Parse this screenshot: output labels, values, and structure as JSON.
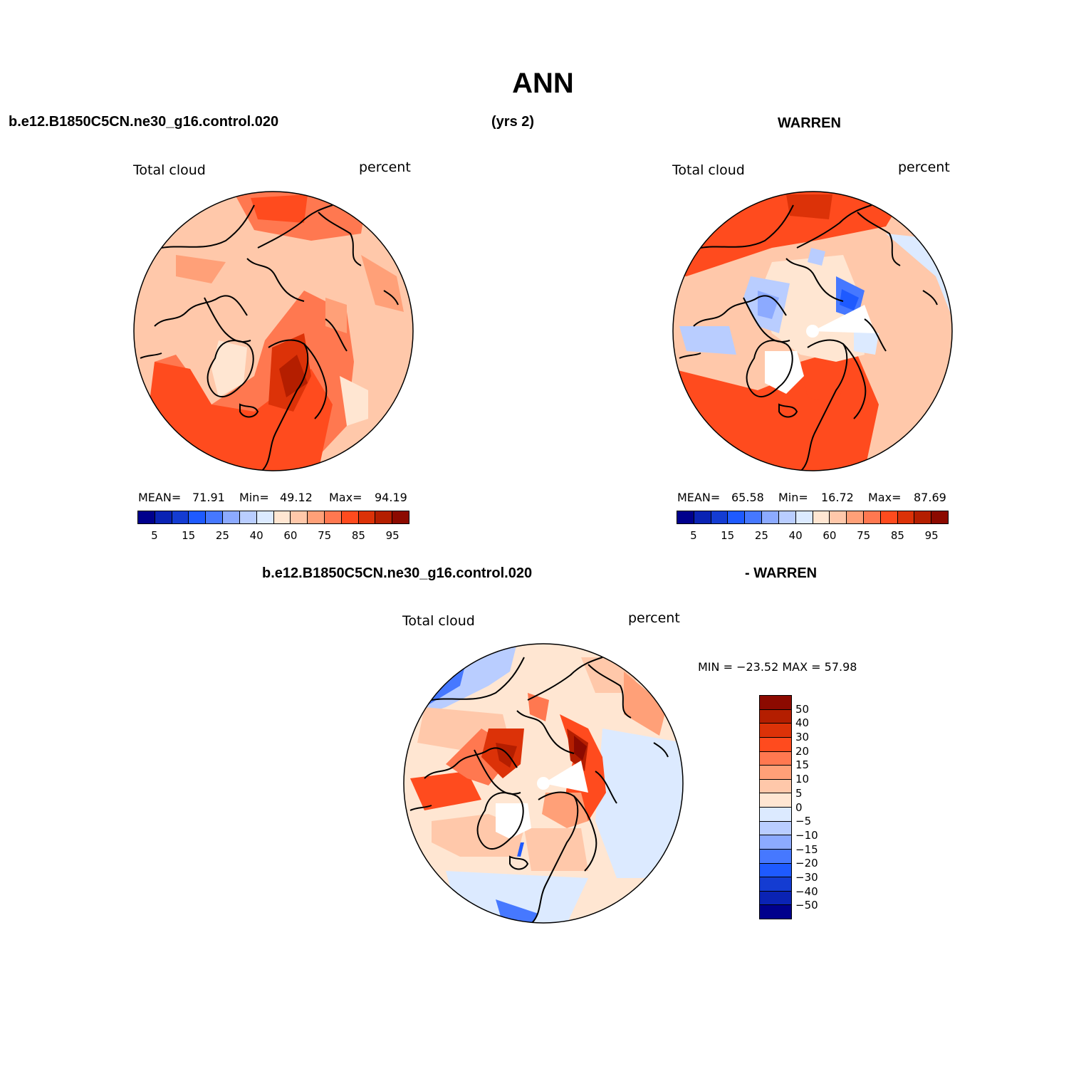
{
  "title": "ANN",
  "header": {
    "case_name": "b.e12.B1850C5CN.ne30_g16.control.020",
    "years": "(yrs 2)",
    "obs_name": "WARREN"
  },
  "diff_header": {
    "case_name": "b.e12.B1850C5CN.ne30_g16.control.020",
    "obs_name": "- WARREN"
  },
  "panels": {
    "model": {
      "variable": "Total cloud",
      "units": "percent",
      "mean_label": "MEAN=",
      "mean": "71.91",
      "min_label": "Min=",
      "min": "49.12",
      "max_label": "Max=",
      "max": "94.19"
    },
    "obs": {
      "variable": "Total cloud",
      "units": "percent",
      "mean_label": "MEAN=",
      "mean": "65.58",
      "min_label": "Min=",
      "min": "16.72",
      "max_label": "Max=",
      "max": "87.69"
    },
    "diff": {
      "variable": "Total cloud",
      "units": "percent",
      "minmax": "MIN = −23.52  MAX =   57.98"
    }
  },
  "colorbar_main": {
    "colors": [
      "#00008c",
      "#0a23b4",
      "#143cd2",
      "#1e5aff",
      "#4678ff",
      "#8caaff",
      "#b9cdff",
      "#dceaff",
      "#ffe6d2",
      "#ffc8aa",
      "#ffa078",
      "#ff7850",
      "#ff4b1e",
      "#dc3208",
      "#b41e00",
      "#8c0a00"
    ],
    "labels": [
      "5",
      "15",
      "25",
      "40",
      "60",
      "75",
      "85",
      "95"
    ]
  },
  "colorbar_diff": {
    "colors": [
      "#8c0a00",
      "#b41e00",
      "#dc3208",
      "#ff4b1e",
      "#ff7850",
      "#ffa078",
      "#ffc8aa",
      "#ffe6d2",
      "#dceaff",
      "#b9cdff",
      "#8caaff",
      "#4678ff",
      "#1e5aff",
      "#143cd2",
      "#0a23b4",
      "#00008c"
    ],
    "labels": [
      "50",
      "40",
      "30",
      "20",
      "15",
      "10",
      "5",
      "0",
      "−5",
      "−10",
      "−15",
      "−20",
      "−30",
      "−40",
      "−50"
    ]
  }
}
